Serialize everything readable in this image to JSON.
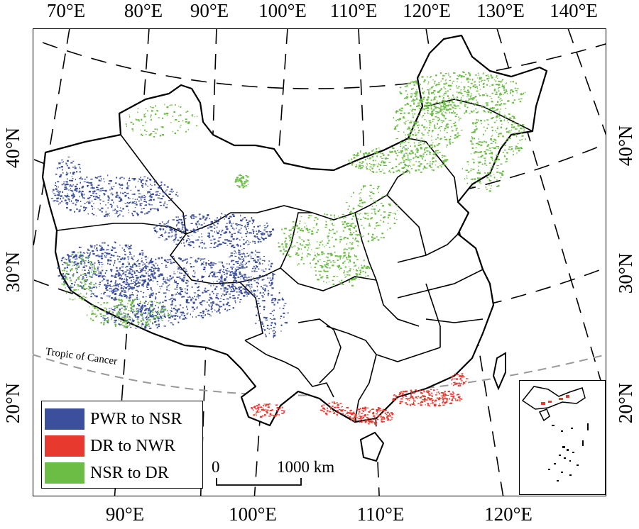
{
  "map": {
    "top_ticks": [
      "70°E",
      "80°E",
      "90°E",
      "100°E",
      "110°E",
      "120°E",
      "130°E",
      "140°E"
    ],
    "bottom_ticks": [
      "90°E",
      "100°E",
      "110°E",
      "120°E"
    ],
    "left_ticks": [
      "40°N",
      "30°N",
      "20°N"
    ],
    "right_ticks": [
      "40°N",
      "30°N",
      "20°N"
    ],
    "tropic_label": "Tropic of Cancer",
    "scale_start": "0",
    "scale_end": "1000 km"
  },
  "legend": {
    "items": [
      {
        "label": "PWR to NSR",
        "color": "#3b4f9c"
      },
      {
        "label": "DR to NWR",
        "color": "#e8392f"
      },
      {
        "label": "NSR to DR",
        "color": "#6cbd45"
      }
    ]
  },
  "colors": {
    "pwr_nsr": "#3b4f9c",
    "dr_nwr": "#e8392f",
    "nsr_dr": "#6cbd45",
    "border": "#000000",
    "graticule": "#000000",
    "tropic": "#999999"
  }
}
